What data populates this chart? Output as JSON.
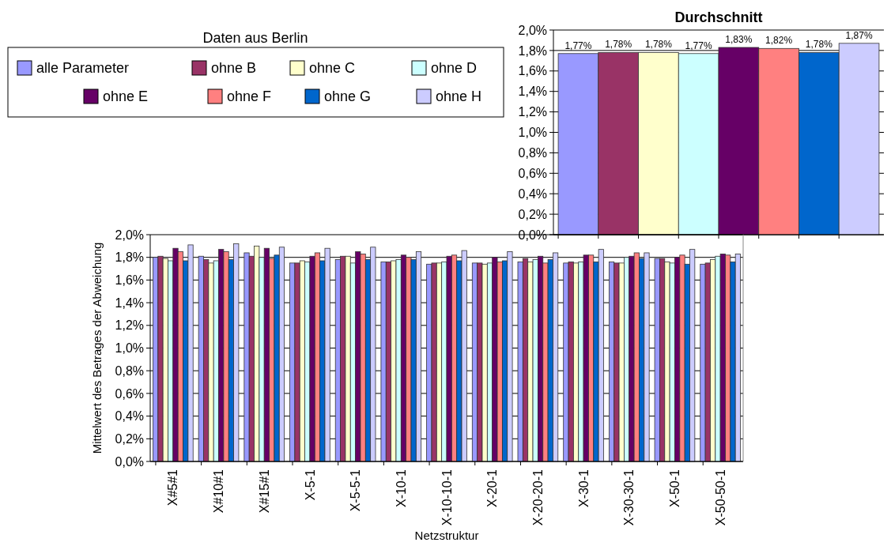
{
  "chart_data": [
    {
      "type": "bar",
      "title": "Durchschnitt",
      "categories": [
        null,
        null,
        null,
        null,
        null,
        null,
        null,
        null
      ],
      "values": [
        1.77,
        1.78,
        1.78,
        1.77,
        1.83,
        1.82,
        1.78,
        1.87
      ],
      "colors": [
        "#9999ff",
        "#993366",
        "#ffffcc",
        "#ccffff",
        "#660066",
        "#ff8080",
        "#0066cc",
        "#ccccff"
      ],
      "value_labels": [
        "1,77%",
        "1,78%",
        "1,78%",
        "1,77%",
        "1,83%",
        "1,82%",
        "1,78%",
        "1,87%"
      ],
      "ylim": [
        0,
        2.0
      ],
      "yticks": [
        {
          "value": 0,
          "label": "0,0%"
        },
        {
          "value": 0.2,
          "label": "0,2%"
        },
        {
          "value": 0.4,
          "label": "0,4%"
        },
        {
          "value": 0.6,
          "label": "0,6%"
        },
        {
          "value": 0.8,
          "label": "0,8%"
        },
        {
          "value": 1.0,
          "label": "1,0%"
        },
        {
          "value": 1.2,
          "label": "1,2%"
        },
        {
          "value": 1.4,
          "label": "1,4%"
        },
        {
          "value": 1.6,
          "label": "1,6%"
        },
        {
          "value": 1.8,
          "label": "1,8%"
        },
        {
          "value": 2.0,
          "label": "2,0%"
        }
      ],
      "grid": "y"
    },
    {
      "type": "bar",
      "legend_title": "Daten aus Berlin",
      "xlabel": "Netzstruktur",
      "ylabel": "Mittelwert des Betrages der Abweichung",
      "categories": [
        "X#5#1",
        "X#10#1",
        "X#15#1",
        "X-5-1",
        "X-5-5-1",
        "X-10-1",
        "X-10-10-1",
        "X-20-1",
        "X-20-20-1",
        "X-30-1",
        "X-30-30-1",
        "X-50-1",
        "X-50-50-1"
      ],
      "series": [
        {
          "name": "alle Parameter",
          "color": "#9999ff",
          "values": [
            1.8,
            1.81,
            1.84,
            1.75,
            1.78,
            1.76,
            1.74,
            1.75,
            1.76,
            1.75,
            1.76,
            1.79,
            1.74
          ]
        },
        {
          "name": "ohne B",
          "color": "#993366",
          "values": [
            1.81,
            1.78,
            1.81,
            1.75,
            1.81,
            1.76,
            1.75,
            1.75,
            1.79,
            1.76,
            1.75,
            1.79,
            1.75
          ]
        },
        {
          "name": "ohne C",
          "color": "#ffffcc",
          "values": [
            1.79,
            1.75,
            1.9,
            1.77,
            1.81,
            1.77,
            1.75,
            1.74,
            1.76,
            1.75,
            1.75,
            1.76,
            1.78
          ]
        },
        {
          "name": "ohne D",
          "color": "#ccffff",
          "values": [
            1.77,
            1.77,
            1.8,
            1.76,
            1.75,
            1.78,
            1.76,
            1.75,
            1.78,
            1.76,
            1.8,
            1.75,
            1.81
          ]
        },
        {
          "name": "ohne E",
          "color": "#660066",
          "values": [
            1.88,
            1.87,
            1.88,
            1.81,
            1.85,
            1.82,
            1.81,
            1.8,
            1.81,
            1.82,
            1.81,
            1.8,
            1.83
          ]
        },
        {
          "name": "ohne F",
          "color": "#ff8080",
          "values": [
            1.85,
            1.85,
            1.79,
            1.84,
            1.83,
            1.8,
            1.82,
            1.76,
            1.75,
            1.82,
            1.84,
            1.82,
            1.82
          ]
        },
        {
          "name": "ohne G",
          "color": "#0066cc",
          "values": [
            1.77,
            1.78,
            1.82,
            1.77,
            1.78,
            1.78,
            1.77,
            1.77,
            1.78,
            1.76,
            1.79,
            1.74,
            1.76
          ]
        },
        {
          "name": "ohne H",
          "color": "#ccccff",
          "values": [
            1.91,
            1.92,
            1.89,
            1.88,
            1.89,
            1.85,
            1.86,
            1.85,
            1.84,
            1.87,
            1.84,
            1.87,
            1.83
          ]
        }
      ],
      "ylim": [
        0,
        2.0
      ],
      "yticks": [
        {
          "value": 0,
          "label": "0,0%"
        },
        {
          "value": 0.2,
          "label": "0,2%"
        },
        {
          "value": 0.4,
          "label": "0,4%"
        },
        {
          "value": 0.6,
          "label": "0,6%"
        },
        {
          "value": 0.8,
          "label": "0,8%"
        },
        {
          "value": 1.0,
          "label": "1,0%"
        },
        {
          "value": 1.2,
          "label": "1,2%"
        },
        {
          "value": 1.4,
          "label": "1,4%"
        },
        {
          "value": 1.6,
          "label": "1,6%"
        },
        {
          "value": 1.8,
          "label": "1,8%"
        },
        {
          "value": 2.0,
          "label": "2,0%"
        }
      ],
      "grid": "y",
      "legend": "top left"
    }
  ]
}
